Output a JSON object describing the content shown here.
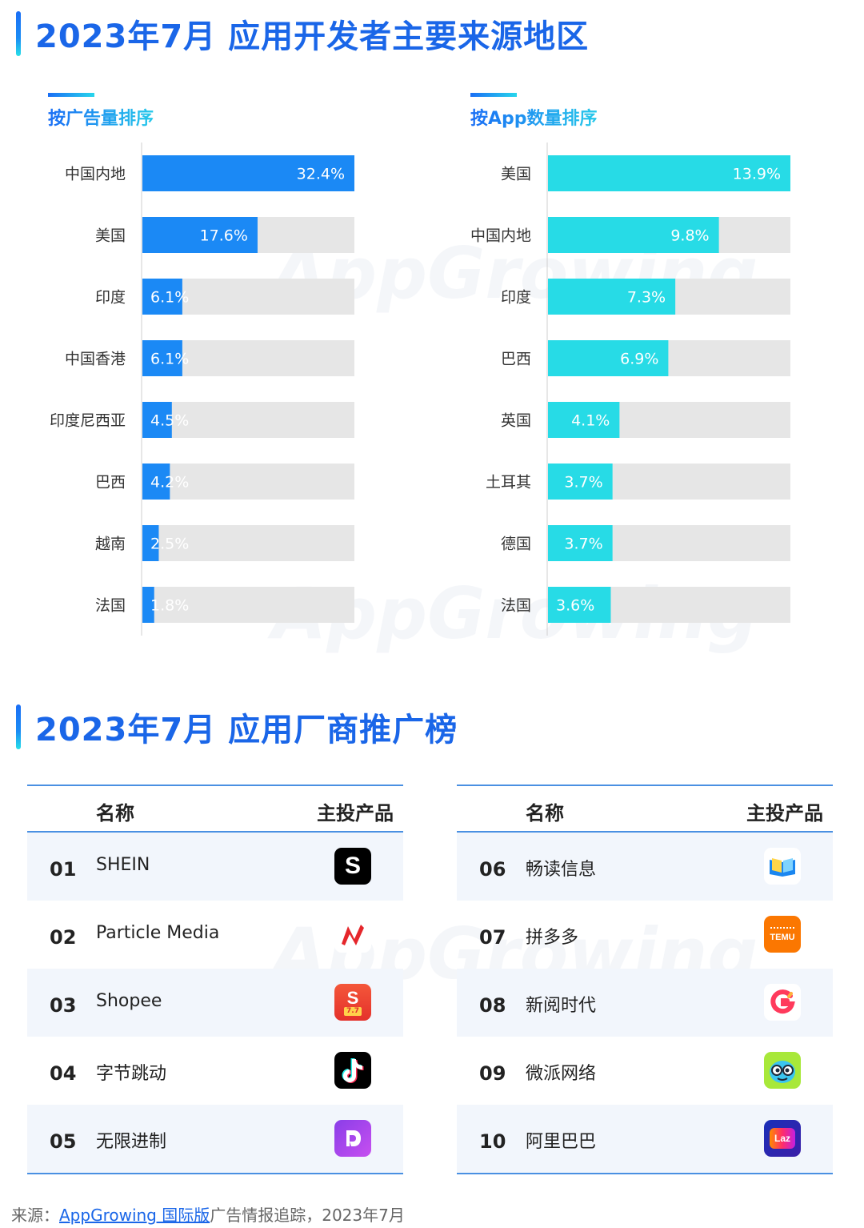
{
  "section1": {
    "title": "2023年7月 应用开发者主要来源地区"
  },
  "section2": {
    "title": "2023年7月 应用厂商推广榜"
  },
  "watermark": "AppGrowing",
  "chart_data": [
    {
      "type": "bar",
      "orientation": "horizontal",
      "title": "按广告量排序",
      "categories": [
        "中国内地",
        "美国",
        "印度",
        "中国香港",
        "印度尼西亚",
        "巴西",
        "越南",
        "法国"
      ],
      "values": [
        32.4,
        17.6,
        6.1,
        6.1,
        4.5,
        4.2,
        2.5,
        1.8
      ],
      "labels": [
        "32.4%",
        "17.6%",
        "6.1%",
        "6.1%",
        "4.5%",
        "4.2%",
        "2.5%",
        "1.8%"
      ],
      "max": 32.4,
      "bar_color": "#1b89f5",
      "track_color": "#e6e6e6",
      "grid": false
    },
    {
      "type": "bar",
      "orientation": "horizontal",
      "title": "按App数量排序",
      "categories": [
        "美国",
        "中国内地",
        "印度",
        "巴西",
        "英国",
        "土耳其",
        "德国",
        "法国"
      ],
      "values": [
        13.9,
        9.8,
        7.3,
        6.9,
        4.1,
        3.7,
        3.7,
        3.6
      ],
      "labels": [
        "13.9%",
        "9.8%",
        "7.3%",
        "6.9%",
        "4.1%",
        "3.7%",
        "3.7%",
        "3.6%"
      ],
      "max": 13.9,
      "bar_color": "#27dbe6",
      "track_color": "#e6e6e6",
      "grid": false
    }
  ],
  "table_left": {
    "header_name": "名称",
    "header_product": "主投产品",
    "rows": [
      {
        "rank": "01",
        "name": "SHEIN",
        "icon": "shein-icon"
      },
      {
        "rank": "02",
        "name": "Particle Media",
        "icon": "newsbreak-icon"
      },
      {
        "rank": "03",
        "name": "Shopee",
        "icon": "shopee-icon",
        "icon_text": "7.7"
      },
      {
        "rank": "04",
        "name": "字节跳动",
        "icon": "tiktok-icon"
      },
      {
        "rank": "05",
        "name": "无限进制",
        "icon": "purple-app-icon"
      }
    ]
  },
  "table_right": {
    "header_name": "名称",
    "header_product": "主投产品",
    "rows": [
      {
        "rank": "06",
        "name": "畅读信息",
        "icon": "book-icon"
      },
      {
        "rank": "07",
        "name": "拼多多",
        "icon": "temu-icon",
        "icon_text": "TEMU"
      },
      {
        "rank": "08",
        "name": "新阅时代",
        "icon": "g-reader-icon"
      },
      {
        "rank": "09",
        "name": "微派网络",
        "icon": "cartoon-face-icon"
      },
      {
        "rank": "10",
        "name": "阿里巴巴",
        "icon": "lazada-icon",
        "icon_text": "Laz"
      }
    ]
  },
  "footer": {
    "prefix": "来源：",
    "link": "AppGrowing 国际版",
    "suffix": "广告情报追踪，2023年7月"
  }
}
